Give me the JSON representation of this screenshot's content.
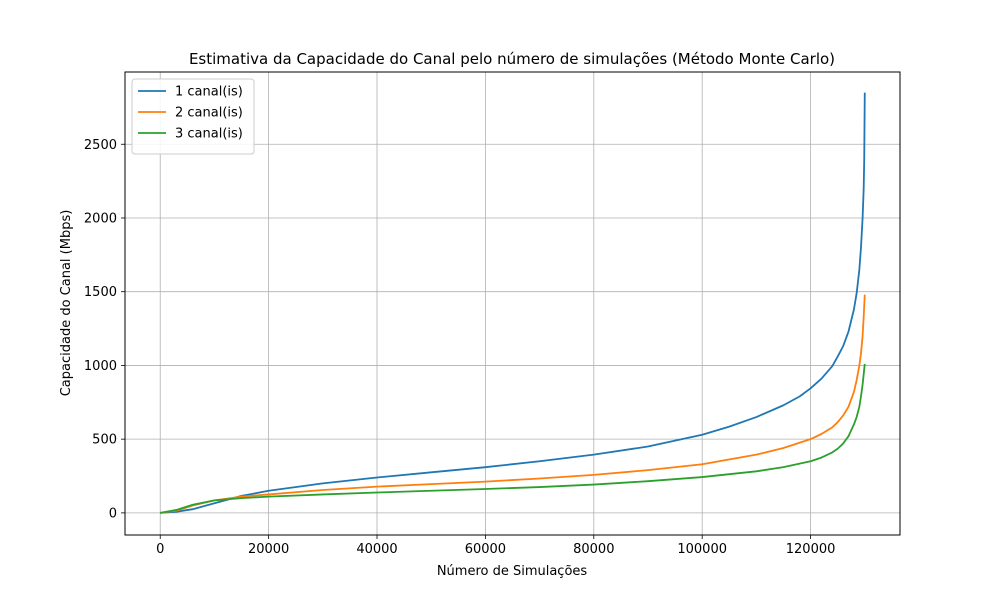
{
  "chart_data": {
    "type": "line",
    "title": "Estimativa da Capacidade do Canal pelo número de simulações (Método Monte Carlo)",
    "xlabel": "Número de Simulações",
    "ylabel": "Capacidade do Canal (Mbps)",
    "xlim": [
      -6500,
      136500
    ],
    "ylim": [
      -150,
      2990
    ],
    "xticks": [
      0,
      20000,
      40000,
      60000,
      80000,
      100000,
      120000
    ],
    "yticks": [
      0,
      500,
      1000,
      1500,
      2000,
      2500
    ],
    "grid": true,
    "legend_position": "top-left",
    "series": [
      {
        "name": "1 canal(is)",
        "color": "#1f77b4",
        "x": [
          0,
          3000,
          6000,
          10000,
          15000,
          20000,
          30000,
          40000,
          50000,
          60000,
          70000,
          80000,
          90000,
          100000,
          105000,
          110000,
          115000,
          118000,
          120000,
          122000,
          124000,
          125000,
          126000,
          127000,
          128000,
          128500,
          129000,
          129300,
          129600,
          129800,
          129900,
          130000
        ],
        "y": [
          0,
          8,
          25,
          65,
          115,
          150,
          200,
          240,
          275,
          310,
          350,
          395,
          450,
          530,
          585,
          650,
          730,
          790,
          845,
          910,
          995,
          1060,
          1130,
          1230,
          1380,
          1490,
          1650,
          1800,
          2000,
          2200,
          2400,
          2850
        ]
      },
      {
        "name": "2 canal(is)",
        "color": "#ff7f0e",
        "x": [
          0,
          3000,
          6000,
          10000,
          15000,
          20000,
          30000,
          40000,
          50000,
          60000,
          70000,
          80000,
          90000,
          100000,
          110000,
          115000,
          120000,
          122000,
          124000,
          125000,
          126000,
          127000,
          128000,
          128500,
          129000,
          129300,
          129600,
          129800,
          130000
        ],
        "y": [
          0,
          15,
          50,
          85,
          110,
          125,
          155,
          178,
          195,
          212,
          233,
          258,
          290,
          330,
          395,
          440,
          500,
          535,
          580,
          615,
          660,
          720,
          820,
          900,
          1000,
          1080,
          1200,
          1330,
          1480
        ]
      },
      {
        "name": "3 canal(is)",
        "color": "#2ca02c",
        "x": [
          0,
          3000,
          6000,
          10000,
          15000,
          20000,
          30000,
          40000,
          50000,
          60000,
          70000,
          80000,
          90000,
          100000,
          110000,
          115000,
          120000,
          122000,
          124000,
          125000,
          126000,
          127000,
          128000,
          128500,
          129000,
          129300,
          129600,
          129800,
          130000
        ],
        "y": [
          0,
          20,
          55,
          85,
          100,
          110,
          125,
          138,
          150,
          162,
          175,
          192,
          215,
          243,
          282,
          310,
          350,
          375,
          410,
          435,
          470,
          520,
          600,
          650,
          720,
          790,
          870,
          940,
          1010
        ]
      }
    ]
  }
}
